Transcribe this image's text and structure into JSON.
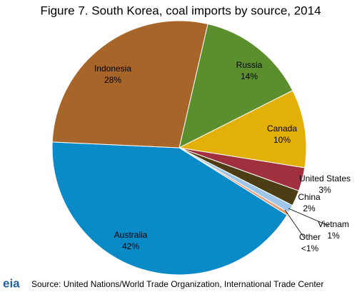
{
  "chart_data": {
    "type": "pie",
    "title": "Figure 7. South Korea, coal imports by source, 2014",
    "categories": [
      "Russia",
      "Canada",
      "United States",
      "China",
      "Vietnam",
      "Other",
      "Australia",
      "Indonesia"
    ],
    "values": [
      14,
      10,
      3,
      2,
      1,
      0.4,
      42,
      28
    ],
    "value_labels": [
      "14%",
      "10%",
      "3%",
      "2%",
      "1%",
      "<1%",
      "42%",
      "28%"
    ],
    "colors": [
      "#5b8f2e",
      "#e3b008",
      "#a0303e",
      "#4d3d14",
      "#9fc6e8",
      "#e59b76",
      "#0b8ac8",
      "#a8652a"
    ],
    "source": "Source: United Nations/World Trade Organization, International Trade Center",
    "logo": "eia"
  }
}
